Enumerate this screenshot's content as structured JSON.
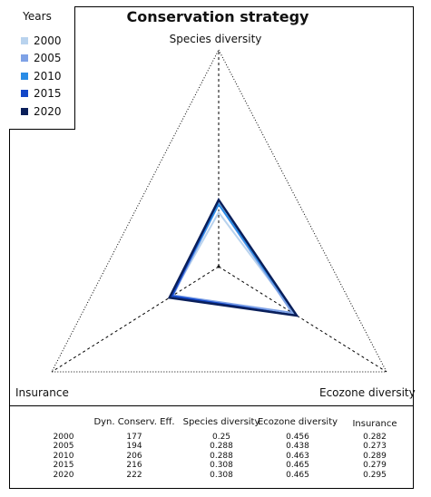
{
  "chart_data": {
    "type": "radar",
    "title": "Conservation strategy",
    "axes": [
      "Species diversity",
      "Ecozone diversity",
      "Insurance"
    ],
    "range": [
      0,
      1
    ],
    "legend": {
      "title": "Years",
      "position": "top-left"
    },
    "series": [
      {
        "name": "2000",
        "color": "#b9d3ee",
        "values": [
          0.25,
          0.456,
          0.282
        ]
      },
      {
        "name": "2005",
        "color": "#7fa2e6",
        "values": [
          0.288,
          0.438,
          0.273
        ]
      },
      {
        "name": "2010",
        "color": "#2a8ce6",
        "values": [
          0.288,
          0.463,
          0.289
        ]
      },
      {
        "name": "2015",
        "color": "#1347c8",
        "values": [
          0.308,
          0.465,
          0.279
        ]
      },
      {
        "name": "2020",
        "color": "#0a1f5a",
        "values": [
          0.308,
          0.465,
          0.295
        ]
      }
    ],
    "table": {
      "headers": [
        "Dyn. Conserv. Eff.",
        "Species diversity",
        "Ecozone diversity",
        "Insurance"
      ],
      "rows": [
        [
          "2000",
          "177",
          "0.25",
          "0.456",
          "0.282"
        ],
        [
          "2005",
          "194",
          "0.288",
          "0.438",
          "0.273"
        ],
        [
          "2010",
          "206",
          "0.288",
          "0.463",
          "0.289"
        ],
        [
          "2015",
          "216",
          "0.308",
          "0.465",
          "0.279"
        ],
        [
          "2020",
          "222",
          "0.308",
          "0.465",
          "0.295"
        ]
      ]
    }
  }
}
